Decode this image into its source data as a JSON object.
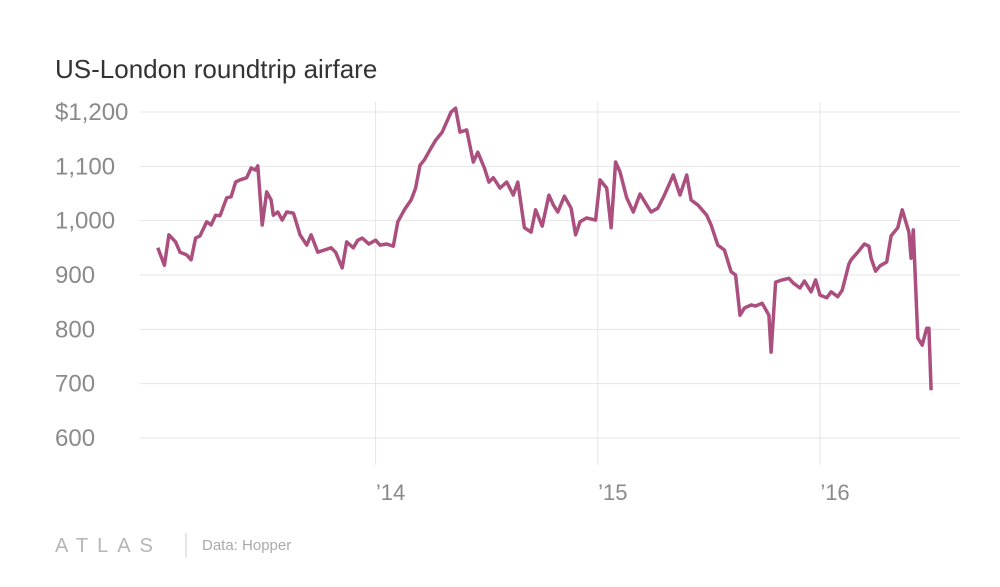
{
  "chart_data": {
    "type": "line",
    "title": "US-London roundtrip airfare",
    "logo": "ATLAS",
    "source": "Data: Hopper",
    "xlim": [
      2012.94,
      2016.63
    ],
    "ylim": [
      600,
      1200
    ],
    "xticks": [
      {
        "value": 2014,
        "label": "’14"
      },
      {
        "value": 2015,
        "label": "’15"
      },
      {
        "value": 2016,
        "label": "’16"
      }
    ],
    "yticks": [
      600,
      700,
      800,
      900,
      {
        "value": 1000,
        "label": "1,000"
      },
      {
        "value": 1100,
        "label": "1,100"
      },
      {
        "value": 1200,
        "label": "$1,200"
      }
    ],
    "grid": true,
    "x": [
      2013.02,
      2013.05,
      2013.07,
      2013.1,
      2013.12,
      2013.15,
      2013.17,
      2013.19,
      2013.21,
      2013.24,
      2013.26,
      2013.28,
      2013.3,
      2013.33,
      2013.35,
      2013.37,
      2013.39,
      2013.42,
      2013.44,
      2013.46,
      2013.47,
      2013.49,
      2013.51,
      2013.53,
      2013.54,
      2013.56,
      2013.58,
      2013.6,
      2013.63,
      2013.64,
      2013.66,
      2013.69,
      2013.71,
      2013.74,
      2013.77,
      2013.8,
      2013.82,
      2013.85,
      2013.87,
      2013.9,
      2013.92,
      2013.94,
      2013.97,
      2014.0,
      2014.02,
      2014.05,
      2014.08,
      2014.1,
      2014.13,
      2014.16,
      2014.18,
      2014.2,
      2014.22,
      2014.25,
      2014.27,
      2014.3,
      2014.34,
      2014.36,
      2014.38,
      2014.41,
      2014.44,
      2014.46,
      2014.49,
      2014.51,
      2014.53,
      2014.56,
      2014.59,
      2014.62,
      2014.64,
      2014.67,
      2014.7,
      2014.72,
      2014.75,
      2014.78,
      2014.8,
      2014.82,
      2014.85,
      2014.88,
      2014.9,
      2014.92,
      2014.95,
      2014.99,
      2015.01,
      2015.04,
      2015.06,
      2015.08,
      2015.1,
      2015.13,
      2015.16,
      2015.19,
      2015.22,
      2015.24,
      2015.27,
      2015.3,
      2015.33,
      2015.34,
      2015.37,
      2015.4,
      2015.42,
      2015.45,
      2015.49,
      2015.51,
      2015.54,
      2015.57,
      2015.6,
      2015.62,
      2015.64,
      2015.66,
      2015.69,
      2015.71,
      2015.74,
      2015.77,
      2015.78,
      2015.8,
      2015.83,
      2015.86,
      2015.88,
      2015.91,
      2015.93,
      2015.96,
      2015.98,
      2016.0,
      2016.03,
      2016.05,
      2016.08,
      2016.1,
      2016.13,
      2016.14,
      2016.17,
      2016.2,
      2016.22,
      2016.23,
      2016.25,
      2016.27,
      2016.3,
      2016.32,
      2016.35,
      2016.37,
      2016.4,
      2016.41,
      2016.42,
      2016.44,
      2016.46,
      2016.48,
      2016.49,
      2016.5
    ],
    "series": [
      {
        "name": "Airfare",
        "color": "#ab4f7f",
        "values": [
          950,
          918,
          974,
          961,
          942,
          937,
          928,
          968,
          972,
          998,
          992,
          1010,
          1009,
          1042,
          1044,
          1071,
          1075,
          1079,
          1097,
          1093,
          1101,
          992,
          1053,
          1038,
          1010,
          1016,
          1001,
          1016,
          1014,
          1001,
          974,
          955,
          974,
          942,
          946,
          950,
          942,
          913,
          961,
          950,
          964,
          968,
          957,
          964,
          955,
          957,
          953,
          998,
          1020,
          1038,
          1060,
          1102,
          1112,
          1134,
          1148,
          1163,
          1200,
          1207,
          1163,
          1167,
          1108,
          1126,
          1097,
          1071,
          1079,
          1060,
          1071,
          1047,
          1071,
          987,
          979,
          1020,
          990,
          1047,
          1029,
          1016,
          1045,
          1023,
          974,
          998,
          1005,
          1001,
          1075,
          1060,
          987,
          1108,
          1090,
          1042,
          1016,
          1049,
          1029,
          1016,
          1023,
          1047,
          1075,
          1084,
          1047,
          1084,
          1038,
          1029,
          1010,
          992,
          955,
          946,
          906,
          900,
          826,
          839,
          845,
          843,
          848,
          826,
          758,
          887,
          891,
          894,
          885,
          876,
          889,
          869,
          891,
          863,
          858,
          869,
          860,
          872,
          920,
          928,
          942,
          957,
          953,
          931,
          907,
          917,
          924,
          972,
          987,
          1020,
          979,
          931,
          983,
          784,
          771,
          802,
          802,
          688
        ]
      }
    ]
  }
}
